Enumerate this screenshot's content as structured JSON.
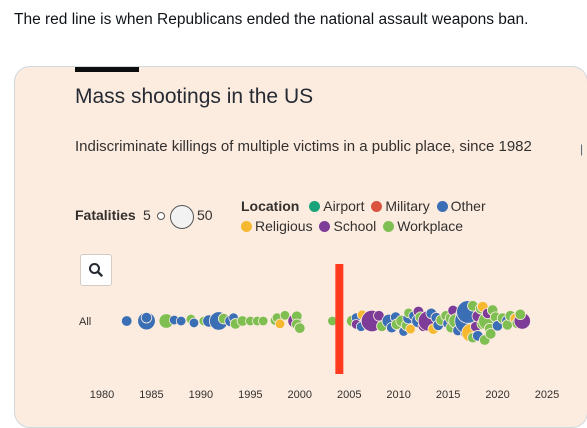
{
  "tweet": {
    "text": "The red line is when Republicans ended the national assault weapons ban."
  },
  "card": {
    "title": "Mass shootings in the US",
    "subtitle": "Indiscriminate killings of multiple victims in a public place, since 1982",
    "fatalities_label": "Fatalities",
    "fatalities_min": "5",
    "fatalities_max": "50",
    "location_label": "Location",
    "legend": [
      {
        "name": "Airport",
        "color": "#1aa37a"
      },
      {
        "name": "Military",
        "color": "#d9533f"
      },
      {
        "name": "Other",
        "color": "#3a6fb5"
      },
      {
        "name": "Religious",
        "color": "#f5b82e"
      },
      {
        "name": "School",
        "color": "#7d3c98"
      },
      {
        "name": "Workplace",
        "color": "#7fbf52"
      }
    ],
    "search_icon": "magnifier-icon",
    "row_label": "All"
  },
  "chart_data": {
    "type": "scatter",
    "title": "Mass shootings in the US",
    "x_ticks": [
      "1980",
      "1985",
      "1990",
      "1995",
      "2000",
      "2005",
      "2010",
      "2015",
      "2020",
      "2025"
    ],
    "xlim": [
      1980,
      2025
    ],
    "row_labels": [
      "All"
    ],
    "marker_line": {
      "x": 2004,
      "color": "#ff3b1f",
      "meaning": "end of national assault weapons ban"
    },
    "size_scale": {
      "min_fatalities": 5,
      "max_fatalities": 50
    },
    "points": [
      {
        "x": 1982.5,
        "y": 0,
        "f": 8,
        "c": "Other"
      },
      {
        "x": 1984.3,
        "y": -0.2,
        "f": 8,
        "c": "Workplace"
      },
      {
        "x": 1984.5,
        "y": 0,
        "f": 21,
        "c": "Other"
      },
      {
        "x": 1984.5,
        "y": 0.35,
        "f": 8,
        "c": "Other"
      },
      {
        "x": 1986.5,
        "y": 0,
        "f": 14,
        "c": "Workplace"
      },
      {
        "x": 1987.3,
        "y": 0.1,
        "f": 7,
        "c": "Other"
      },
      {
        "x": 1988,
        "y": 0,
        "f": 7,
        "c": "Other"
      },
      {
        "x": 1989,
        "y": 0.2,
        "f": 7,
        "c": "Workplace"
      },
      {
        "x": 1989.3,
        "y": -0.2,
        "f": 7,
        "c": "Other"
      },
      {
        "x": 1990.3,
        "y": 0,
        "f": 7,
        "c": "Workplace"
      },
      {
        "x": 1990.8,
        "y": 0,
        "f": 10,
        "c": "Other"
      },
      {
        "x": 1991.5,
        "y": -0.3,
        "f": 8,
        "c": "Workplace"
      },
      {
        "x": 1991.8,
        "y": 0,
        "f": 23,
        "c": "Other"
      },
      {
        "x": 1992.3,
        "y": 0.25,
        "f": 8,
        "c": "Workplace"
      },
      {
        "x": 1993,
        "y": 0,
        "f": 9,
        "c": "Other"
      },
      {
        "x": 1993.3,
        "y": 0.35,
        "f": 7,
        "c": "Other"
      },
      {
        "x": 1993.5,
        "y": -0.3,
        "f": 8,
        "c": "Workplace"
      },
      {
        "x": 1994.2,
        "y": 0,
        "f": 8,
        "c": "Workplace"
      },
      {
        "x": 1995,
        "y": 0,
        "f": 7,
        "c": "Workplace"
      },
      {
        "x": 1995.7,
        "y": 0,
        "f": 7,
        "c": "Workplace"
      },
      {
        "x": 1996.3,
        "y": 0,
        "f": 7,
        "c": "Workplace"
      },
      {
        "x": 1997.5,
        "y": 0.05,
        "f": 7,
        "c": "Workplace"
      },
      {
        "x": 1997.7,
        "y": 0.35,
        "f": 7,
        "c": "Workplace"
      },
      {
        "x": 1998,
        "y": -0.3,
        "f": 7,
        "c": "Religious"
      },
      {
        "x": 1998.5,
        "y": 0.6,
        "f": 7,
        "c": "Workplace"
      },
      {
        "x": 1999.5,
        "y": 0,
        "f": 13,
        "c": "School"
      },
      {
        "x": 1999.7,
        "y": 0.5,
        "f": 8,
        "c": "Workplace"
      },
      {
        "x": 1999.7,
        "y": -0.35,
        "f": 8,
        "c": "Workplace"
      },
      {
        "x": 2000,
        "y": -0.75,
        "f": 8,
        "c": "Workplace"
      },
      {
        "x": 2003.3,
        "y": 0,
        "f": 7,
        "c": "Workplace"
      },
      {
        "x": 2005.3,
        "y": 0,
        "f": 9,
        "c": "Workplace"
      },
      {
        "x": 2005.7,
        "y": 0.35,
        "f": 7,
        "c": "Other"
      },
      {
        "x": 2005.7,
        "y": -0.35,
        "f": 7,
        "c": "School"
      },
      {
        "x": 2006.2,
        "y": -0.6,
        "f": 7,
        "c": "Other"
      },
      {
        "x": 2006.3,
        "y": 0.65,
        "f": 7,
        "c": "Religious"
      },
      {
        "x": 2007,
        "y": 0.35,
        "f": 8,
        "c": "Workplace"
      },
      {
        "x": 2007,
        "y": -0.4,
        "f": 8,
        "c": "Workplace"
      },
      {
        "x": 2007.3,
        "y": 0,
        "f": 32,
        "c": "School"
      },
      {
        "x": 2008,
        "y": 0.55,
        "f": 8,
        "c": "School"
      },
      {
        "x": 2008.3,
        "y": -0.55,
        "f": 8,
        "c": "Workplace"
      },
      {
        "x": 2009,
        "y": 0,
        "f": 12,
        "c": "Other"
      },
      {
        "x": 2009.3,
        "y": -0.7,
        "f": 8,
        "c": "Other"
      },
      {
        "x": 2009.7,
        "y": 0.4,
        "f": 8,
        "c": "Other"
      },
      {
        "x": 2009.8,
        "y": -0.35,
        "f": 8,
        "c": "Workplace"
      },
      {
        "x": 2010.3,
        "y": 0,
        "f": 9,
        "c": "Workplace"
      },
      {
        "x": 2010.5,
        "y": -1.1,
        "f": 7,
        "c": "Other"
      },
      {
        "x": 2010.8,
        "y": -0.45,
        "f": 8,
        "c": "Workplace"
      },
      {
        "x": 2011,
        "y": 0.3,
        "f": 9,
        "c": "Other"
      },
      {
        "x": 2011,
        "y": 0.85,
        "f": 7,
        "c": "Workplace"
      },
      {
        "x": 2011.2,
        "y": -0.85,
        "f": 7,
        "c": "Religious"
      },
      {
        "x": 2011.5,
        "y": 0.55,
        "f": 7,
        "c": "Other"
      },
      {
        "x": 2012,
        "y": 0,
        "f": 12,
        "c": "Other"
      },
      {
        "x": 2012,
        "y": 1.0,
        "f": 8,
        "c": "School"
      },
      {
        "x": 2012.2,
        "y": 0.4,
        "f": 8,
        "c": "Workplace"
      },
      {
        "x": 2012.5,
        "y": -0.55,
        "f": 8,
        "c": "School"
      },
      {
        "x": 2013,
        "y": 0,
        "f": 28,
        "c": "School"
      },
      {
        "x": 2013.3,
        "y": 0.8,
        "f": 8,
        "c": "Other"
      },
      {
        "x": 2013.5,
        "y": -0.85,
        "f": 8,
        "c": "Religious"
      },
      {
        "x": 2013.8,
        "y": 0.35,
        "f": 8,
        "c": "Other"
      },
      {
        "x": 2014,
        "y": -0.45,
        "f": 8,
        "c": "Other"
      },
      {
        "x": 2014.3,
        "y": 0.1,
        "f": 8,
        "c": "Workplace"
      },
      {
        "x": 2014.8,
        "y": 0.55,
        "f": 8,
        "c": "Workplace"
      },
      {
        "x": 2015,
        "y": -0.25,
        "f": 8,
        "c": "Other"
      },
      {
        "x": 2015.3,
        "y": 0.3,
        "f": 9,
        "c": "Workplace"
      },
      {
        "x": 2015.3,
        "y": -0.7,
        "f": 8,
        "c": "Workplace"
      },
      {
        "x": 2015.5,
        "y": 1.1,
        "f": 8,
        "c": "School"
      },
      {
        "x": 2015.8,
        "y": 0,
        "f": 14,
        "c": "Workplace"
      },
      {
        "x": 2016,
        "y": -1.0,
        "f": 8,
        "c": "Other"
      },
      {
        "x": 2016.3,
        "y": 0.7,
        "f": 8,
        "c": "Other"
      },
      {
        "x": 2016.5,
        "y": -0.5,
        "f": 9,
        "c": "School"
      },
      {
        "x": 2016.5,
        "y": 0.35,
        "f": 8,
        "c": "Airport"
      },
      {
        "x": 2016.8,
        "y": -1.3,
        "f": 8,
        "c": "Other"
      },
      {
        "x": 2017,
        "y": 0,
        "f": 50,
        "c": "Other"
      },
      {
        "x": 2017,
        "y": 0.95,
        "f": 36,
        "c": "Other"
      },
      {
        "x": 2017.3,
        "y": -1.25,
        "f": 22,
        "c": "Religious"
      },
      {
        "x": 2017.5,
        "y": 1.6,
        "f": 8,
        "c": "Workplace"
      },
      {
        "x": 2017.5,
        "y": -1.75,
        "f": 8,
        "c": "Workplace"
      },
      {
        "x": 2017.8,
        "y": -0.6,
        "f": 8,
        "c": "School"
      },
      {
        "x": 2018,
        "y": 0.5,
        "f": 9,
        "c": "School"
      },
      {
        "x": 2018,
        "y": -1.55,
        "f": 8,
        "c": "Other"
      },
      {
        "x": 2018.3,
        "y": 1.3,
        "f": 8,
        "c": "Workplace"
      },
      {
        "x": 2018.5,
        "y": -0.3,
        "f": 9,
        "c": "Workplace"
      },
      {
        "x": 2018.5,
        "y": 1.5,
        "f": 8,
        "c": "Religious"
      },
      {
        "x": 2018.7,
        "y": -2.0,
        "f": 8,
        "c": "Workplace"
      },
      {
        "x": 2019,
        "y": 0,
        "f": 22,
        "c": "Workplace"
      },
      {
        "x": 2019,
        "y": 0.8,
        "f": 8,
        "c": "School"
      },
      {
        "x": 2019.2,
        "y": -0.8,
        "f": 8,
        "c": "Workplace"
      },
      {
        "x": 2019.3,
        "y": -1.35,
        "f": 8,
        "c": "Workplace"
      },
      {
        "x": 2019.5,
        "y": 1.15,
        "f": 8,
        "c": "Workplace"
      },
      {
        "x": 2019.8,
        "y": 0.4,
        "f": 8,
        "c": "Workplace"
      },
      {
        "x": 2020,
        "y": -0.5,
        "f": 8,
        "c": "Other"
      },
      {
        "x": 2020.5,
        "y": 0.3,
        "f": 8,
        "c": "Workplace"
      },
      {
        "x": 2021,
        "y": 0,
        "f": 9,
        "c": "Other"
      },
      {
        "x": 2021,
        "y": -0.4,
        "f": 8,
        "c": "Workplace"
      },
      {
        "x": 2021.3,
        "y": 0.55,
        "f": 8,
        "c": "Workplace"
      },
      {
        "x": 2021.8,
        "y": 0.25,
        "f": 8,
        "c": "Religious"
      },
      {
        "x": 2022,
        "y": -0.25,
        "f": 8,
        "c": "Workplace"
      },
      {
        "x": 2022.5,
        "y": 0,
        "f": 18,
        "c": "School"
      },
      {
        "x": 2022.3,
        "y": 0.7,
        "f": 8,
        "c": "Workplace"
      }
    ]
  }
}
